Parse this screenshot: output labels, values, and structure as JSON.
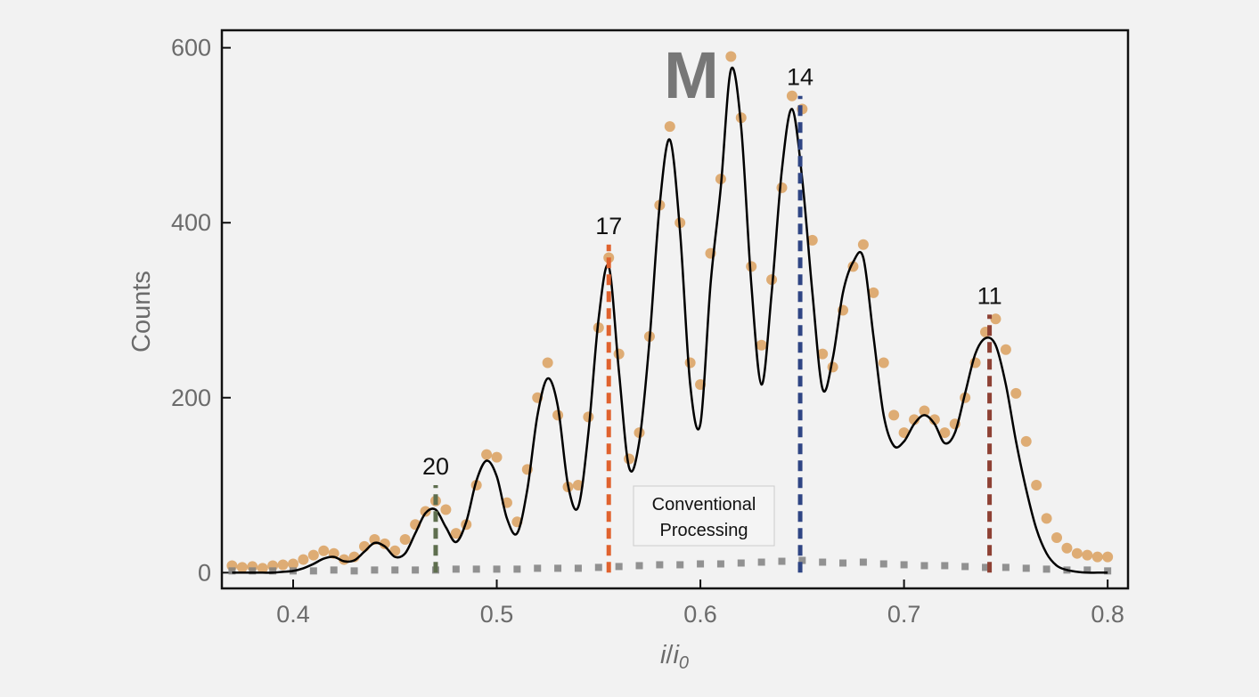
{
  "chart_data": {
    "type": "scatter",
    "title": "",
    "xlabel_main": "i",
    "xlabel_sep": "/",
    "xlabel_base": "i",
    "xlabel_sub": "0",
    "ylabel": "Counts",
    "xlim": [
      0.365,
      0.81
    ],
    "ylim": [
      -18,
      620
    ],
    "xticks": [
      0.4,
      0.5,
      0.6,
      0.7,
      0.8
    ],
    "xtick_labels": [
      "0.4",
      "0.5",
      "0.6",
      "0.7",
      "0.8"
    ],
    "yticks": [
      0,
      200,
      400,
      600
    ],
    "ytick_labels": [
      "0",
      "200",
      "400",
      "600"
    ],
    "grid": false,
    "logo": "M",
    "annotation": {
      "line1": "Conventional",
      "line2": "Processing",
      "x": 0.6,
      "y": 50
    },
    "markers": [
      {
        "label": "20",
        "x": 0.47,
        "top": 100,
        "color": "#5e6e4e"
      },
      {
        "label": "17",
        "x": 0.555,
        "top": 375,
        "color": "#e0622e"
      },
      {
        "label": "14",
        "x": 0.649,
        "top": 545,
        "color": "#2f4584"
      },
      {
        "label": "11",
        "x": 0.742,
        "top": 295,
        "color": "#8e4134"
      }
    ],
    "series": [
      {
        "name": "",
        "style": "dots",
        "color": "#dca466",
        "x": [
          0.37,
          0.375,
          0.38,
          0.385,
          0.39,
          0.395,
          0.4,
          0.405,
          0.41,
          0.415,
          0.42,
          0.425,
          0.43,
          0.435,
          0.44,
          0.445,
          0.45,
          0.455,
          0.46,
          0.465,
          0.47,
          0.475,
          0.48,
          0.485,
          0.49,
          0.495,
          0.5,
          0.505,
          0.51,
          0.515,
          0.52,
          0.525,
          0.53,
          0.535,
          0.54,
          0.545,
          0.55,
          0.555,
          0.56,
          0.565,
          0.57,
          0.575,
          0.58,
          0.585,
          0.59,
          0.595,
          0.6,
          0.605,
          0.61,
          0.615,
          0.62,
          0.625,
          0.63,
          0.635,
          0.64,
          0.645,
          0.65,
          0.655,
          0.66,
          0.665,
          0.67,
          0.675,
          0.68,
          0.685,
          0.69,
          0.695,
          0.7,
          0.705,
          0.71,
          0.715,
          0.72,
          0.725,
          0.73,
          0.735,
          0.74,
          0.745,
          0.75,
          0.755,
          0.76,
          0.765,
          0.77,
          0.775,
          0.78,
          0.785,
          0.79,
          0.795,
          0.8
        ],
        "y": [
          8,
          6,
          7,
          5,
          8,
          9,
          10,
          15,
          20,
          25,
          22,
          15,
          18,
          30,
          38,
          33,
          25,
          38,
          55,
          70,
          82,
          72,
          45,
          55,
          100,
          135,
          132,
          80,
          58,
          118,
          200,
          240,
          180,
          98,
          100,
          178,
          280,
          360,
          250,
          130,
          160,
          270,
          420,
          510,
          400,
          240,
          215,
          365,
          450,
          590,
          520,
          350,
          260,
          335,
          440,
          545,
          530,
          380,
          250,
          235,
          300,
          350,
          375,
          320,
          240,
          180,
          160,
          175,
          185,
          175,
          160,
          170,
          200,
          240,
          275,
          290,
          255,
          205,
          150,
          100,
          62,
          40,
          28,
          22,
          20,
          18,
          18
        ]
      },
      {
        "name": "",
        "style": "line",
        "color": "#000000",
        "x": [
          0.37,
          0.375,
          0.38,
          0.385,
          0.39,
          0.395,
          0.4,
          0.405,
          0.41,
          0.415,
          0.42,
          0.425,
          0.43,
          0.435,
          0.44,
          0.445,
          0.45,
          0.455,
          0.46,
          0.465,
          0.47,
          0.475,
          0.48,
          0.485,
          0.49,
          0.495,
          0.5,
          0.505,
          0.51,
          0.515,
          0.52,
          0.525,
          0.53,
          0.535,
          0.54,
          0.545,
          0.55,
          0.555,
          0.56,
          0.565,
          0.57,
          0.575,
          0.58,
          0.585,
          0.59,
          0.595,
          0.6,
          0.605,
          0.61,
          0.615,
          0.62,
          0.625,
          0.63,
          0.635,
          0.64,
          0.645,
          0.65,
          0.655,
          0.66,
          0.665,
          0.67,
          0.675,
          0.68,
          0.685,
          0.69,
          0.695,
          0.7,
          0.705,
          0.71,
          0.715,
          0.72,
          0.725,
          0.73,
          0.735,
          0.74,
          0.745,
          0.75,
          0.755,
          0.76,
          0.765,
          0.77,
          0.775,
          0.78,
          0.785,
          0.79,
          0.795,
          0.8
        ],
        "y": [
          0,
          0,
          0,
          0,
          0,
          1,
          2,
          5,
          10,
          16,
          18,
          13,
          14,
          24,
          34,
          30,
          18,
          22,
          45,
          68,
          72,
          52,
          35,
          58,
          105,
          128,
          110,
          62,
          45,
          95,
          180,
          222,
          190,
          100,
          75,
          160,
          290,
          350,
          230,
          120,
          150,
          265,
          420,
          495,
          390,
          215,
          170,
          330,
          440,
          575,
          510,
          330,
          215,
          320,
          460,
          530,
          450,
          320,
          210,
          245,
          320,
          355,
          360,
          270,
          180,
          145,
          150,
          170,
          180,
          170,
          148,
          160,
          205,
          250,
          268,
          260,
          215,
          150,
          95,
          50,
          22,
          8,
          3,
          1,
          0,
          0,
          0
        ]
      },
      {
        "name": "",
        "style": "squares",
        "color": "#808080",
        "x": [
          0.37,
          0.38,
          0.39,
          0.4,
          0.41,
          0.42,
          0.43,
          0.44,
          0.45,
          0.46,
          0.47,
          0.48,
          0.49,
          0.5,
          0.51,
          0.52,
          0.53,
          0.54,
          0.55,
          0.56,
          0.57,
          0.58,
          0.59,
          0.6,
          0.61,
          0.62,
          0.63,
          0.64,
          0.65,
          0.66,
          0.67,
          0.68,
          0.69,
          0.7,
          0.71,
          0.72,
          0.73,
          0.74,
          0.75,
          0.76,
          0.77,
          0.78,
          0.79,
          0.8
        ],
        "y": [
          2,
          2,
          2,
          2,
          2,
          3,
          2,
          3,
          3,
          3,
          3,
          4,
          4,
          4,
          4,
          5,
          5,
          5,
          6,
          7,
          8,
          9,
          9,
          10,
          10,
          11,
          12,
          13,
          14,
          12,
          11,
          12,
          10,
          9,
          8,
          8,
          7,
          6,
          6,
          5,
          4,
          3,
          3,
          2
        ]
      }
    ]
  }
}
